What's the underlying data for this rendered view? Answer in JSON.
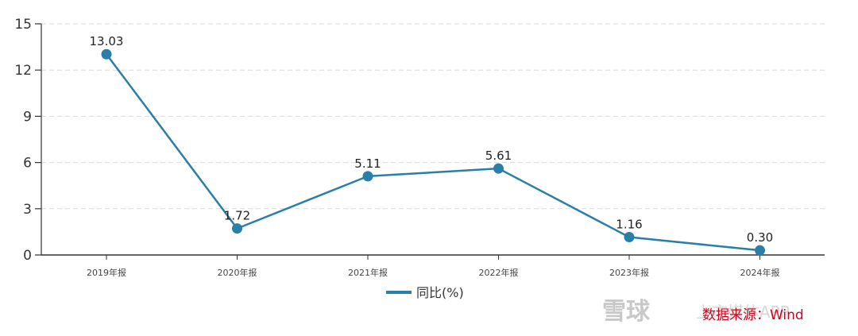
{
  "chart_data": {
    "type": "line",
    "categories": [
      "2019年报",
      "2020年报",
      "2021年报",
      "2022年报",
      "2023年报",
      "2024年报"
    ],
    "series": [
      {
        "name": "同比(%)",
        "values": [
          13.03,
          1.72,
          5.11,
          5.61,
          1.16,
          0.3
        ],
        "labels": [
          "13.03",
          "1.72",
          "5.11",
          "5.61",
          "1.16",
          "0.30"
        ],
        "color": "#2a7fa8"
      }
    ],
    "yticks": [
      "0",
      "3",
      "6",
      "9",
      "12",
      "15"
    ],
    "ylim": [
      0,
      15
    ],
    "grid": true,
    "legend": "bottom-center"
  },
  "source_note": "数据来源：Wind",
  "watermark": {
    "logo": "雪球",
    "text": "上市媒体APP"
  }
}
